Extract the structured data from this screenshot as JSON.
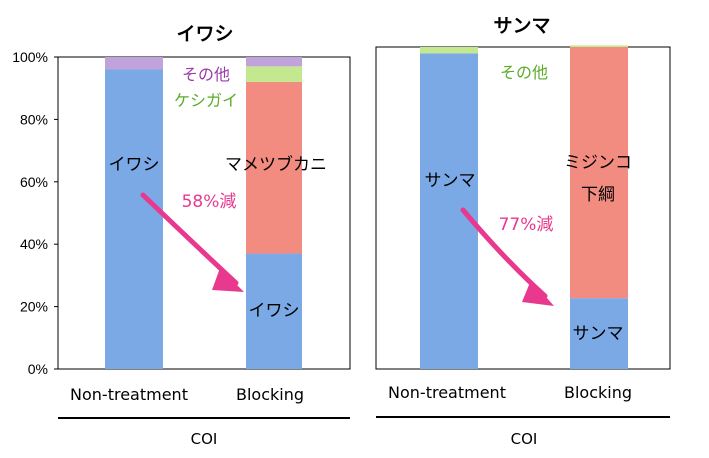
{
  "colors": {
    "blue": "#7aa9e6",
    "red": "#f28b80",
    "green": "#c4e88f",
    "purple": "#c0a3da",
    "pink": "#e8398f",
    "label_purple": "#9b3aa8",
    "label_green": "#5aac2a"
  },
  "chart_data": [
    {
      "type": "bar",
      "stacked": true,
      "title": "イワシ",
      "categories": [
        "Non-treatment",
        "Blocking"
      ],
      "group_label": "COI",
      "ylim": [
        0,
        100
      ],
      "y_ticks": [
        "0%",
        "20%",
        "40%",
        "60%",
        "80%",
        "100%"
      ],
      "series": [
        {
          "name": "イワシ",
          "values": [
            96,
            37
          ],
          "color": "#7aa9e6"
        },
        {
          "name": "マメツブカニ",
          "values": [
            0,
            55
          ],
          "color": "#f28b80"
        },
        {
          "name": "ケシガイ",
          "values": [
            0,
            5
          ],
          "color": "#c4e88f"
        },
        {
          "name": "その他",
          "values": [
            4,
            3
          ],
          "color": "#c0a3da"
        }
      ],
      "annotations": {
        "bar1_label": "イワシ",
        "bar2_main": "マメツブカニ",
        "bar2_bottom": "イワシ",
        "green_label": "ケシガイ",
        "other_label": "その他",
        "reduction": "58%減"
      }
    },
    {
      "type": "bar",
      "stacked": true,
      "title": "サンマ",
      "categories": [
        "Non-treatment",
        "Blocking"
      ],
      "group_label": "COI",
      "ylim": [
        0,
        100
      ],
      "series": [
        {
          "name": "サンマ",
          "values": [
            98,
            22
          ],
          "color": "#7aa9e6"
        },
        {
          "name": "ミジンコ下綱",
          "values": [
            0,
            78
          ],
          "color": "#f28b80"
        },
        {
          "name": "その他",
          "values": [
            2,
            0.5
          ],
          "color": "#c4e88f"
        }
      ],
      "annotations": {
        "bar1_label": "サンマ",
        "bar2_main_line1": "ミジンコ",
        "bar2_main_line2": "下綱",
        "bar2_bottom": "サンマ",
        "other_label": "その他",
        "reduction": "77%減"
      }
    }
  ]
}
